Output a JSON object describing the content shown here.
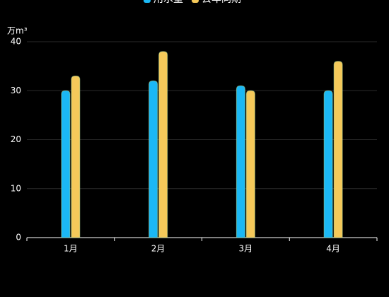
{
  "chart_data": {
    "type": "bar",
    "y_axis_label": "万m³",
    "categories": [
      "1月",
      "2月",
      "3月",
      "4月"
    ],
    "series": [
      {
        "name": "用水量",
        "color": "#1bb8f5",
        "values": [
          30,
          32,
          31,
          30
        ]
      },
      {
        "name": "去年同期",
        "color": "#f5c95a",
        "values": [
          33,
          38,
          30,
          36
        ]
      }
    ],
    "ylim": [
      0,
      40
    ],
    "yticks": [
      0,
      10,
      20,
      30,
      40
    ],
    "grid": true
  }
}
